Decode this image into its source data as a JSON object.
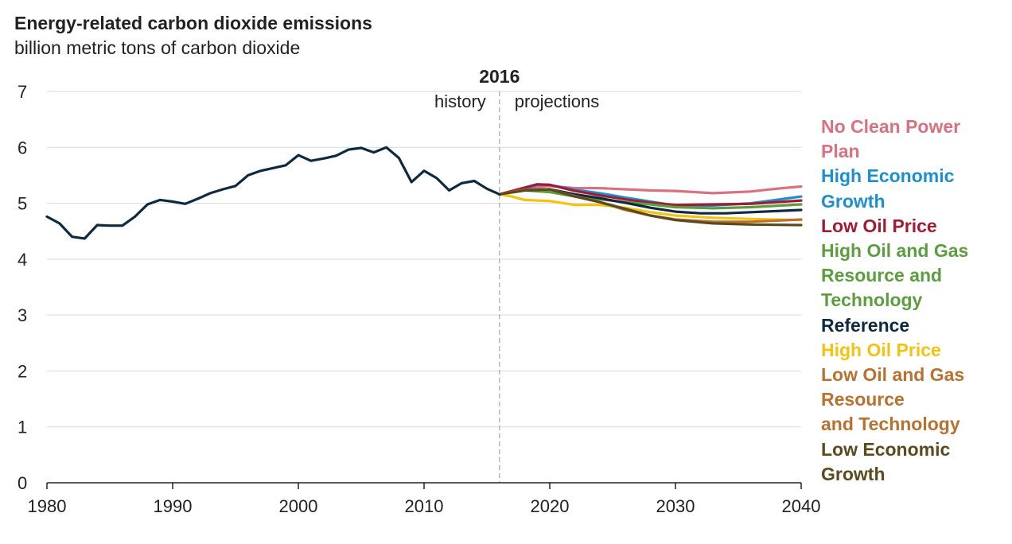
{
  "chart_data": {
    "type": "line",
    "title": "Energy-related carbon dioxide emissions",
    "subtitle": "billion metric tons of carbon dioxide",
    "xlim": [
      1980,
      2040
    ],
    "ylim": [
      0,
      7
    ],
    "x_ticks": [
      "1980",
      "1990",
      "2000",
      "2010",
      "2020",
      "2030",
      "2040"
    ],
    "y_ticks": [
      "0",
      "1",
      "2",
      "3",
      "4",
      "5",
      "6",
      "7"
    ],
    "grid": true,
    "divider": {
      "x": 2016,
      "label": "2016",
      "left_label": "history",
      "right_label": "projections"
    },
    "history": {
      "name": "history",
      "color": "#0d2a40",
      "x": [
        1980,
        1981,
        1982,
        1983,
        1984,
        1985,
        1986,
        1987,
        1988,
        1989,
        1990,
        1991,
        1992,
        1993,
        1994,
        1995,
        1996,
        1997,
        1998,
        1999,
        2000,
        2001,
        2002,
        2003,
        2004,
        2005,
        2006,
        2007,
        2008,
        2009,
        2010,
        2011,
        2012,
        2013,
        2014,
        2015,
        2016
      ],
      "values": [
        4.76,
        4.64,
        4.4,
        4.37,
        4.61,
        4.6,
        4.6,
        4.76,
        4.98,
        5.06,
        5.03,
        4.99,
        5.08,
        5.18,
        5.25,
        5.31,
        5.5,
        5.58,
        5.63,
        5.68,
        5.86,
        5.76,
        5.8,
        5.85,
        5.96,
        5.99,
        5.91,
        6.0,
        5.81,
        5.38,
        5.58,
        5.45,
        5.23,
        5.36,
        5.4,
        5.26,
        5.16
      ]
    },
    "series": [
      {
        "name": "No Clean Power Plan",
        "label_lines": [
          "No Clean Power",
          "Plan"
        ],
        "color": "#d97180",
        "x": [
          2016,
          2018,
          2020,
          2022,
          2024,
          2026,
          2028,
          2030,
          2033,
          2036,
          2038,
          2040
        ],
        "values": [
          5.16,
          5.27,
          5.31,
          5.27,
          5.27,
          5.25,
          5.23,
          5.22,
          5.18,
          5.21,
          5.26,
          5.3
        ]
      },
      {
        "name": "High Economic Growth",
        "label_lines": [
          "High Economic",
          "Growth"
        ],
        "color": "#1b8fd0",
        "x": [
          2016,
          2018,
          2019,
          2020,
          2022,
          2024,
          2026,
          2028,
          2030,
          2033,
          2036,
          2040
        ],
        "values": [
          5.16,
          5.26,
          5.33,
          5.33,
          5.24,
          5.18,
          5.1,
          5.03,
          4.96,
          4.96,
          5.0,
          5.12
        ]
      },
      {
        "name": "Low Oil Price",
        "label_lines": [
          "Low Oil Price"
        ],
        "color": "#a31b33",
        "x": [
          2016,
          2018,
          2019,
          2020,
          2022,
          2024,
          2026,
          2028,
          2030,
          2033,
          2036,
          2040
        ],
        "values": [
          5.16,
          5.28,
          5.34,
          5.33,
          5.22,
          5.14,
          5.07,
          5.01,
          4.97,
          4.98,
          4.99,
          5.05
        ]
      },
      {
        "name": "High Oil and Gas Resource and Technology",
        "label_lines": [
          "High Oil and Gas",
          "Resource and",
          "Technology"
        ],
        "color": "#5c9e3e",
        "x": [
          2016,
          2018,
          2020,
          2022,
          2024,
          2026,
          2028,
          2030,
          2033,
          2036,
          2040
        ],
        "values": [
          5.16,
          5.23,
          5.2,
          5.12,
          5.07,
          5.02,
          4.98,
          4.93,
          4.91,
          4.93,
          4.98
        ]
      },
      {
        "name": "Reference",
        "label_lines": [
          "Reference"
        ],
        "color": "#0d2a40",
        "x": [
          2016,
          2018,
          2020,
          2022,
          2024,
          2026,
          2028,
          2030,
          2032,
          2034,
          2036,
          2040
        ],
        "values": [
          5.16,
          5.23,
          5.25,
          5.16,
          5.09,
          5.01,
          4.92,
          4.85,
          4.82,
          4.82,
          4.84,
          4.88
        ]
      },
      {
        "name": "High Oil Price",
        "label_lines": [
          "High Oil Price"
        ],
        "color": "#f5c30f",
        "x": [
          2016,
          2017,
          2018,
          2020,
          2022,
          2024,
          2026,
          2028,
          2030,
          2033,
          2036,
          2040
        ],
        "values": [
          5.16,
          5.12,
          5.06,
          5.04,
          4.97,
          4.97,
          4.92,
          4.84,
          4.78,
          4.74,
          4.72,
          4.7
        ]
      },
      {
        "name": "Low Oil and Gas Resource and Technology",
        "label_lines": [
          "Low Oil and Gas",
          "Resource",
          "and Technology"
        ],
        "color": "#b8712f",
        "x": [
          2016,
          2018,
          2020,
          2022,
          2024,
          2026,
          2028,
          2030,
          2033,
          2036,
          2040
        ],
        "values": [
          5.16,
          5.24,
          5.25,
          5.13,
          5.02,
          4.88,
          4.78,
          4.71,
          4.67,
          4.67,
          4.71
        ]
      },
      {
        "name": "Low Economic Growth",
        "label_lines": [
          "Low Economic",
          "Growth"
        ],
        "color": "#5a4a1c",
        "x": [
          2016,
          2018,
          2020,
          2022,
          2024,
          2026,
          2028,
          2030,
          2033,
          2036,
          2040
        ],
        "values": [
          5.16,
          5.23,
          5.25,
          5.12,
          5.02,
          4.9,
          4.78,
          4.7,
          4.64,
          4.62,
          4.61
        ]
      }
    ]
  }
}
